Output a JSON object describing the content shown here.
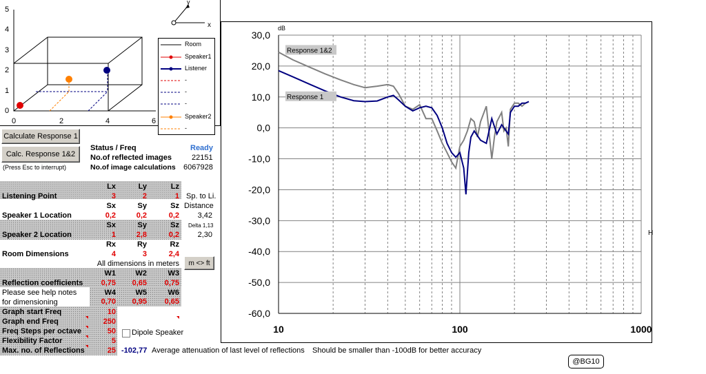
{
  "room_view": {
    "y_ticks": [
      "5",
      "4",
      "3",
      "2",
      "1",
      "0"
    ],
    "x_ticks": [
      "0",
      "2",
      "4",
      "6"
    ],
    "axis_x": "x",
    "axis_y": "y"
  },
  "legend": {
    "items": [
      "Room",
      "Speaker1",
      "Listener",
      "-",
      "-",
      "-",
      "Speaker2",
      "-"
    ]
  },
  "buttons": {
    "calc1": "Calculate Response 1",
    "calc12": "Calc. Response 1&2",
    "esc_note": "(Press Esc to interrupt)",
    "units": "m <> ft"
  },
  "status": {
    "label": "Status / Freq",
    "value": "Ready",
    "reflected_label": "No.of reflected images",
    "reflected_value": "22151",
    "calc_label": "No.of image calculations",
    "calc_value": "6067928"
  },
  "table": {
    "lp": {
      "name": "Listening Point",
      "h": [
        "Lx",
        "Ly",
        "Lz"
      ],
      "v": [
        "3",
        "2",
        "1"
      ]
    },
    "s1": {
      "name": "Speaker 1 Location",
      "h": [
        "Sx",
        "Sy",
        "Sz"
      ],
      "v": [
        "0,2",
        "0,2",
        "0,2"
      ]
    },
    "s2": {
      "name": "Speaker 2 Location",
      "h": [
        "Sx",
        "Sy",
        "Sz"
      ],
      "v": [
        "1",
        "2,8",
        "0,2"
      ]
    },
    "room": {
      "name": "Room Dimensions",
      "h": [
        "Rx",
        "Ry",
        "Rz"
      ],
      "v": [
        "4",
        "3",
        "2,4"
      ]
    },
    "units_note": "All dimensions in meters",
    "refl": {
      "name": "Reflection coefficients",
      "h": [
        "W1",
        "W2",
        "W3"
      ],
      "v": [
        "0,75",
        "0,65",
        "0,75"
      ]
    },
    "help1": "Please see help notes",
    "help2": "for dimensioning",
    "refl2": {
      "h": [
        "W4",
        "W5",
        "W6"
      ],
      "v": [
        "0,70",
        "0,95",
        "0,65"
      ]
    }
  },
  "distance": {
    "l1": "Sp. to Li.",
    "l2": "Distance",
    "v1": "3,42",
    "delta": "Delta 1,13",
    "v2": "2,30"
  },
  "params": [
    {
      "label": "Graph start Freq",
      "value": "10"
    },
    {
      "label": "Graph end Freq",
      "value": "250"
    },
    {
      "label": "Freq Steps per octave",
      "value": "50"
    },
    {
      "label": "Flexibility Factor",
      "value": "5"
    },
    {
      "label": "Max. no. of Reflections",
      "value": "25"
    }
  ],
  "dipole": "Dipole Speaker",
  "attenuation": {
    "value": "-102,77",
    "text": "Average attenuation of last level of reflections",
    "note": "Should be smaller than -100dB for better accuracy"
  },
  "badge": "@BG10",
  "side_label": "H",
  "chart_data": {
    "type": "line",
    "ylabel": "dB",
    "xscale": "log",
    "xlim": [
      10,
      1000
    ],
    "ylim": [
      -60,
      30
    ],
    "yticks": [
      "30,0",
      "20,0",
      "10,0",
      "0,0",
      "-10,0",
      "-20,0",
      "-30,0",
      "-40,0",
      "-50,0",
      "-60,0"
    ],
    "xticks": [
      "10",
      "100",
      "1000"
    ],
    "grid": true,
    "annotations": [
      "Response 1&2",
      "Response 1"
    ],
    "series": [
      {
        "name": "Response 1&2",
        "color": "#808080",
        "x": [
          10,
          12,
          15,
          18,
          22,
          26,
          30,
          35,
          40,
          43,
          46,
          50,
          55,
          60,
          65,
          70,
          75,
          80,
          85,
          90,
          95,
          100,
          105,
          110,
          115,
          120,
          125,
          130,
          140,
          150,
          155,
          160,
          170,
          175,
          180,
          185,
          190,
          200,
          210,
          220,
          230,
          240
        ],
        "y": [
          24.5,
          22,
          19.5,
          17.5,
          15.5,
          14,
          13,
          13.5,
          14,
          13.5,
          11,
          7,
          6,
          7.5,
          3,
          3,
          -1,
          -5,
          -8,
          -11,
          -13,
          -6,
          -4,
          -1,
          3,
          2,
          -3,
          2,
          7,
          -10,
          -3,
          2,
          5,
          -1,
          0,
          -6,
          6,
          8,
          8,
          7,
          8,
          8.5
        ]
      },
      {
        "name": "Response 1",
        "color": "#000080",
        "x": [
          10,
          12,
          15,
          18,
          22,
          26,
          30,
          35,
          40,
          43,
          46,
          50,
          55,
          60,
          65,
          70,
          75,
          80,
          85,
          90,
          95,
          100,
          105,
          108,
          112,
          115,
          120,
          130,
          140,
          150,
          160,
          170,
          180,
          185,
          190,
          200,
          210,
          220,
          230,
          240
        ],
        "y": [
          18.5,
          16.5,
          14,
          12,
          10,
          8.8,
          8.5,
          8.7,
          10,
          10.5,
          9,
          7,
          5.5,
          6.5,
          7,
          6.5,
          4,
          0,
          -5,
          -8,
          -9.5,
          -8,
          -13,
          -21.5,
          -8,
          -3,
          -1,
          -4,
          -5,
          3,
          -2,
          1,
          -1,
          -2,
          5,
          7,
          7,
          8,
          8,
          8.5
        ]
      }
    ]
  }
}
